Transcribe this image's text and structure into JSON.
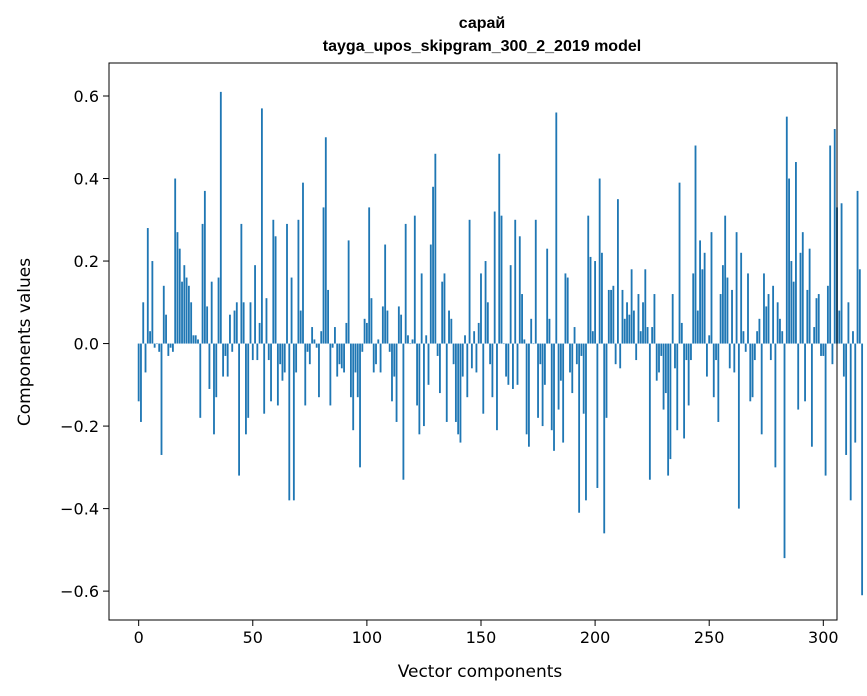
{
  "chart_data": {
    "type": "bar",
    "title_line1": "сарай",
    "title_line2": "tayga_upos_skipgram_300_2_2019 model",
    "xlabel": "Vector components",
    "ylabel": "Components values",
    "xlim": [
      -13,
      306
    ],
    "ylim": [
      -0.67,
      0.68
    ],
    "xticks": [
      0,
      50,
      100,
      150,
      200,
      250,
      300
    ],
    "yticks": [
      -0.6,
      -0.4,
      -0.2,
      0.0,
      0.2,
      0.4,
      0.6
    ],
    "ytick_labels": [
      "−0.6",
      "−0.4",
      "−0.2",
      "0.0",
      "0.2",
      "0.4",
      "0.6"
    ],
    "bar_color": "#1f77b4",
    "values": [
      -0.14,
      -0.19,
      0.1,
      -0.07,
      0.28,
      0.03,
      0.2,
      -0.01,
      0.0,
      -0.02,
      -0.27,
      0.14,
      0.07,
      -0.03,
      -0.01,
      -0.02,
      0.4,
      0.27,
      0.23,
      0.15,
      0.19,
      0.16,
      0.14,
      0.1,
      0.02,
      0.02,
      0.01,
      -0.18,
      0.29,
      0.37,
      0.09,
      -0.11,
      0.15,
      -0.22,
      -0.13,
      0.16,
      0.61,
      -0.08,
      -0.03,
      -0.08,
      0.07,
      -0.02,
      0.08,
      0.1,
      -0.32,
      0.29,
      0.1,
      -0.22,
      -0.18,
      0.1,
      -0.04,
      0.19,
      -0.04,
      0.05,
      0.57,
      -0.17,
      0.11,
      -0.04,
      -0.14,
      0.3,
      0.26,
      -0.15,
      -0.05,
      -0.09,
      -0.07,
      0.29,
      -0.38,
      0.16,
      -0.38,
      -0.07,
      0.3,
      0.08,
      0.39,
      -0.15,
      -0.02,
      -0.05,
      0.04,
      0.01,
      -0.01,
      -0.13,
      0.03,
      0.33,
      0.5,
      0.13,
      -0.15,
      -0.01,
      0.04,
      -0.08,
      -0.05,
      -0.06,
      -0.07,
      0.05,
      0.25,
      -0.13,
      -0.21,
      -0.07,
      -0.13,
      -0.3,
      -0.02,
      0.06,
      0.05,
      0.33,
      0.11,
      -0.07,
      -0.05,
      0.01,
      -0.07,
      0.09,
      0.24,
      0.08,
      -0.02,
      -0.14,
      -0.08,
      -0.19,
      0.09,
      0.07,
      -0.33,
      0.29,
      0.02,
      0.0,
      0.01,
      0.31,
      -0.15,
      -0.22,
      0.17,
      -0.2,
      0.02,
      -0.1,
      0.24,
      0.38,
      0.46,
      -0.03,
      -0.12,
      0.15,
      0.17,
      -0.19,
      0.08,
      0.06,
      -0.05,
      -0.19,
      -0.22,
      -0.24,
      -0.08,
      0.02,
      -0.13,
      0.3,
      -0.06,
      0.03,
      -0.07,
      0.05,
      0.17,
      -0.17,
      0.2,
      0.1,
      -0.05,
      -0.13,
      0.32,
      -0.21,
      0.46,
      0.31,
      0.0,
      -0.08,
      -0.1,
      0.19,
      -0.11,
      0.3,
      -0.1,
      0.26,
      0.12,
      0.01,
      -0.22,
      -0.25,
      0.06,
      0.0,
      0.3,
      -0.18,
      -0.05,
      -0.2,
      -0.1,
      0.23,
      0.06,
      -0.21,
      -0.26,
      0.56,
      -0.16,
      -0.09,
      -0.24,
      0.17,
      0.16,
      -0.07,
      -0.12,
      0.04,
      -0.05,
      -0.41,
      -0.03,
      -0.17,
      -0.38,
      0.31,
      0.21,
      0.03,
      0.2,
      -0.35,
      0.4,
      0.22,
      -0.46,
      -0.18,
      0.13,
      0.13,
      0.14,
      -0.05,
      0.35,
      -0.06,
      0.13,
      0.06,
      0.1,
      0.07,
      0.18,
      0.08,
      -0.04,
      0.12,
      0.03,
      0.1,
      0.18,
      0.04,
      -0.33,
      0.04,
      0.12,
      -0.09,
      -0.07,
      -0.03,
      -0.16,
      -0.12,
      -0.32,
      -0.28,
      0.12,
      -0.06,
      -0.21,
      0.39,
      0.05,
      -0.23,
      -0.04,
      -0.15,
      -0.04,
      0.17,
      0.48,
      0.08,
      0.25,
      0.18,
      0.22,
      -0.08,
      0.02,
      0.27,
      -0.13,
      -0.04,
      -0.19,
      0.12,
      0.19,
      0.31,
      0.16,
      -0.06,
      0.13,
      -0.07,
      0.27,
      -0.4,
      0.22,
      0.03,
      -0.02,
      0.17,
      -0.14,
      -0.13,
      -0.04,
      0.03,
      0.06,
      -0.22,
      0.17,
      0.09,
      0.12,
      -0.04,
      0.14,
      -0.3,
      0.1,
      0.06,
      0.03,
      -0.52,
      0.55,
      0.4,
      0.2,
      0.15,
      0.44,
      -0.16,
      0.22,
      0.27,
      -0.14,
      0.13,
      0.23,
      -0.25,
      0.04,
      0.11,
      0.12,
      -0.03,
      -0.03,
      -0.32,
      0.14,
      0.48,
      -0.05,
      0.52,
      0.33,
      0.08,
      0.34,
      -0.08,
      -0.27,
      0.1,
      -0.38,
      0.03,
      -0.24,
      0.37,
      0.18,
      -0.61
    ]
  }
}
